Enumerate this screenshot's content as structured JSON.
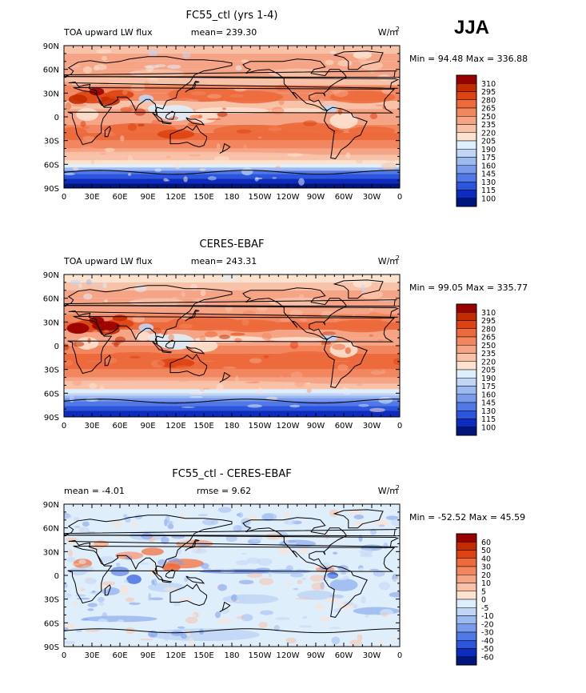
{
  "season": "JJA",
  "chart_data": [
    {
      "type": "heatmap",
      "title": "FC55_ctl (yrs 1-4)",
      "left_label": "TOA upward LW flux",
      "center_label": "mean= 239.30",
      "units": "W/m",
      "units_exp": "2",
      "min_max": "Min =  94.48 Max = 336.88",
      "min": 94.48,
      "max": 336.88,
      "mean": 239.3,
      "x_ticks": [
        "0",
        "30E",
        "60E",
        "90E",
        "120E",
        "150E",
        "180",
        "150W",
        "120W",
        "90W",
        "60W",
        "30W",
        "0"
      ],
      "y_ticks": [
        "90N",
        "60N",
        "30N",
        "0",
        "30S",
        "60S",
        "90S"
      ],
      "levels": [
        "310",
        "295",
        "280",
        "265",
        "250",
        "235",
        "220",
        "205",
        "190",
        "175",
        "160",
        "145",
        "130",
        "115",
        "100"
      ],
      "colors": [
        "#990000",
        "#c22c00",
        "#dd4411",
        "#ec6a3c",
        "#f2865e",
        "#f5a485",
        "#f8c2a8",
        "#fde2cf",
        "#dfeefb",
        "#c1d6f5",
        "#9dbaf0",
        "#7a9aeb",
        "#5078e6",
        "#2b55da",
        "#0d2bbf",
        "#00157e"
      ]
    },
    {
      "type": "heatmap",
      "title": "CERES-EBAF",
      "left_label": "TOA upward LW flux",
      "center_label": "mean= 243.31",
      "units": "W/m",
      "units_exp": "2",
      "min_max": "Min =  99.05 Max = 335.77",
      "min": 99.05,
      "max": 335.77,
      "mean": 243.31,
      "x_ticks": [
        "0",
        "30E",
        "60E",
        "90E",
        "120E",
        "150E",
        "180",
        "150W",
        "120W",
        "90W",
        "60W",
        "30W",
        "0"
      ],
      "y_ticks": [
        "90N",
        "60N",
        "30N",
        "0",
        "30S",
        "60S",
        "90S"
      ],
      "levels": [
        "310",
        "295",
        "280",
        "265",
        "250",
        "235",
        "220",
        "205",
        "190",
        "175",
        "160",
        "145",
        "130",
        "115",
        "100"
      ],
      "colors": [
        "#990000",
        "#c22c00",
        "#dd4411",
        "#ec6a3c",
        "#f2865e",
        "#f5a485",
        "#f8c2a8",
        "#fde2cf",
        "#dfeefb",
        "#c1d6f5",
        "#9dbaf0",
        "#7a9aeb",
        "#5078e6",
        "#2b55da",
        "#0d2bbf",
        "#00157e"
      ]
    },
    {
      "type": "heatmap",
      "title": "FC55_ctl - CERES-EBAF",
      "left_label": "mean =   -4.01",
      "center_label": "rmse =    9.62",
      "units": "W/m",
      "units_exp": "2",
      "min_max": "Min = -52.52 Max =  45.59",
      "min": -52.52,
      "max": 45.59,
      "mean": -4.01,
      "rmse": 9.62,
      "x_ticks": [
        "0",
        "30E",
        "60E",
        "90E",
        "120E",
        "150E",
        "180",
        "150W",
        "120W",
        "90W",
        "60W",
        "30W",
        "0"
      ],
      "y_ticks": [
        "90N",
        "60N",
        "30N",
        "0",
        "30S",
        "60S",
        "90S"
      ],
      "levels": [
        "60",
        "50",
        "40",
        "30",
        "20",
        "10",
        "5",
        "0",
        "-5",
        "-10",
        "-20",
        "-30",
        "-40",
        "-50",
        "-60"
      ],
      "colors": [
        "#990000",
        "#c22c00",
        "#dd4411",
        "#ec6a3c",
        "#f2865e",
        "#f5a485",
        "#f8c2a8",
        "#fde2cf",
        "#dfeefb",
        "#c1d6f5",
        "#9dbaf0",
        "#7a9aeb",
        "#5078e6",
        "#2b55da",
        "#0d2bbf",
        "#00157e"
      ]
    }
  ]
}
